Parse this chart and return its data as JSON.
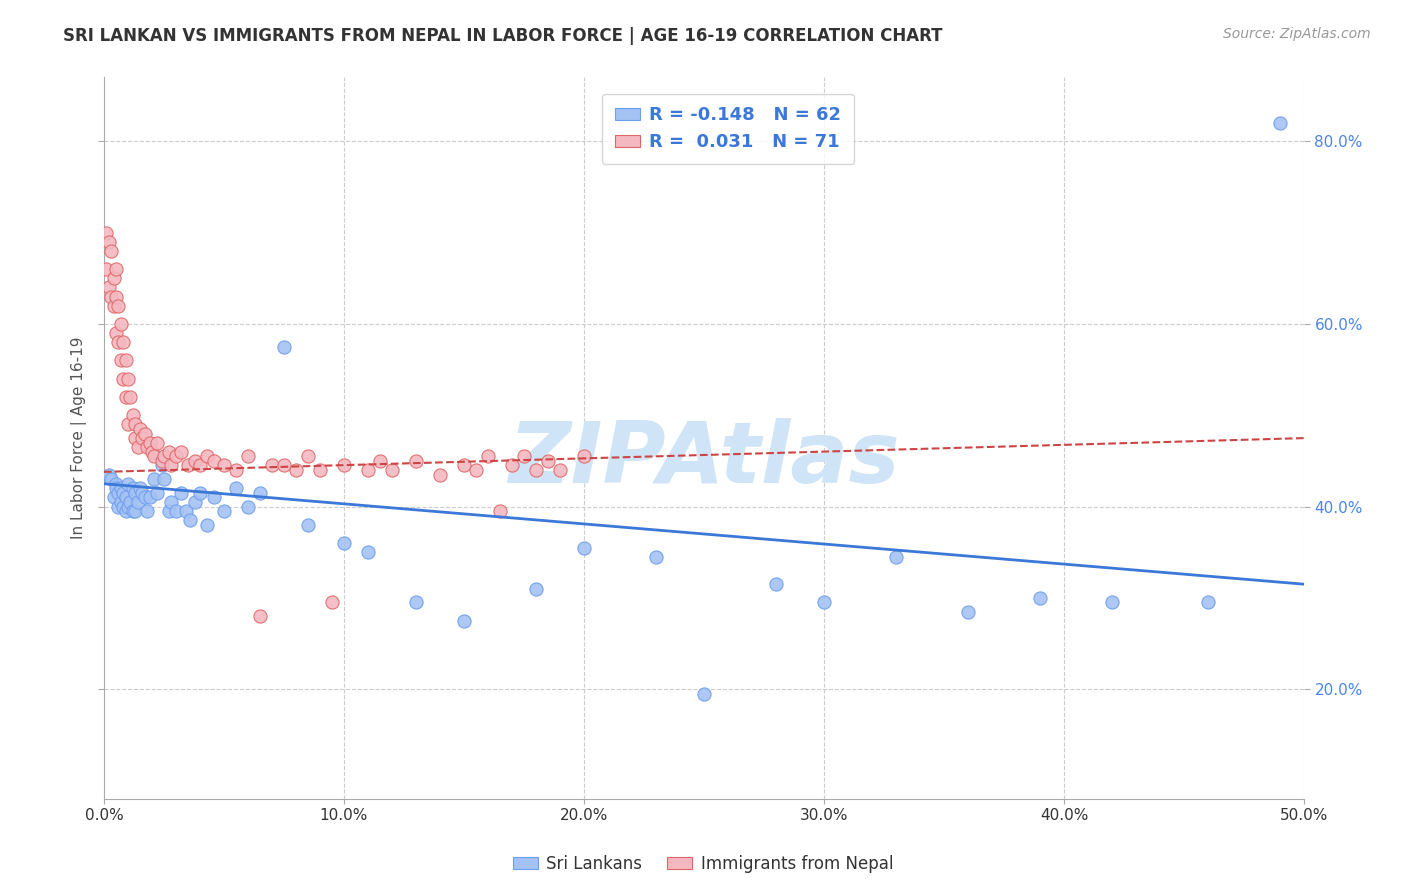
{
  "title": "SRI LANKAN VS IMMIGRANTS FROM NEPAL IN LABOR FORCE | AGE 16-19 CORRELATION CHART",
  "source": "Source: ZipAtlas.com",
  "ylabel": "In Labor Force | Age 16-19",
  "xlim": [
    0.0,
    0.5
  ],
  "ylim": [
    0.08,
    0.87
  ],
  "xticks": [
    0.0,
    0.1,
    0.2,
    0.3,
    0.4,
    0.5
  ],
  "yticks": [
    0.2,
    0.4,
    0.6,
    0.8
  ],
  "blue_R": -0.148,
  "blue_N": 62,
  "pink_R": 0.031,
  "pink_N": 71,
  "blue_color": "#a4c2f4",
  "pink_color": "#f4b8c1",
  "blue_edge_color": "#6d9eeb",
  "pink_edge_color": "#e06666",
  "blue_line_color": "#3c78d8",
  "pink_line_color": "#cc4444",
  "background_color": "#ffffff",
  "grid_color": "#cccccc",
  "watermark": "ZIPAtlas",
  "watermark_color": "#d0e4f7",
  "title_color": "#333333",
  "source_color": "#999999",
  "right_axis_color": "#4a86e8",
  "blue_line_start_y": 0.425,
  "blue_line_end_y": 0.315,
  "pink_line_start_y": 0.438,
  "pink_line_end_y": 0.475,
  "blue_scatter_x": [
    0.002,
    0.003,
    0.004,
    0.005,
    0.005,
    0.006,
    0.006,
    0.007,
    0.007,
    0.008,
    0.008,
    0.009,
    0.009,
    0.01,
    0.01,
    0.011,
    0.012,
    0.012,
    0.013,
    0.013,
    0.014,
    0.015,
    0.016,
    0.017,
    0.018,
    0.019,
    0.021,
    0.022,
    0.024,
    0.025,
    0.027,
    0.028,
    0.03,
    0.032,
    0.034,
    0.036,
    0.038,
    0.04,
    0.043,
    0.046,
    0.05,
    0.055,
    0.06,
    0.065,
    0.075,
    0.085,
    0.1,
    0.11,
    0.13,
    0.15,
    0.18,
    0.2,
    0.23,
    0.25,
    0.28,
    0.3,
    0.33,
    0.36,
    0.39,
    0.42,
    0.46,
    0.49
  ],
  "blue_scatter_y": [
    0.435,
    0.43,
    0.41,
    0.425,
    0.42,
    0.415,
    0.4,
    0.42,
    0.405,
    0.415,
    0.4,
    0.41,
    0.395,
    0.425,
    0.4,
    0.405,
    0.42,
    0.395,
    0.415,
    0.395,
    0.405,
    0.42,
    0.415,
    0.41,
    0.395,
    0.41,
    0.43,
    0.415,
    0.445,
    0.43,
    0.395,
    0.405,
    0.395,
    0.415,
    0.395,
    0.385,
    0.405,
    0.415,
    0.38,
    0.41,
    0.395,
    0.42,
    0.4,
    0.415,
    0.575,
    0.38,
    0.36,
    0.35,
    0.295,
    0.275,
    0.31,
    0.355,
    0.345,
    0.195,
    0.315,
    0.295,
    0.345,
    0.285,
    0.3,
    0.295,
    0.295,
    0.82
  ],
  "pink_scatter_x": [
    0.001,
    0.001,
    0.002,
    0.002,
    0.003,
    0.003,
    0.004,
    0.004,
    0.005,
    0.005,
    0.005,
    0.006,
    0.006,
    0.007,
    0.007,
    0.008,
    0.008,
    0.009,
    0.009,
    0.01,
    0.01,
    0.011,
    0.012,
    0.013,
    0.013,
    0.014,
    0.015,
    0.016,
    0.017,
    0.018,
    0.019,
    0.02,
    0.021,
    0.022,
    0.024,
    0.025,
    0.027,
    0.028,
    0.03,
    0.032,
    0.035,
    0.038,
    0.04,
    0.043,
    0.046,
    0.05,
    0.055,
    0.06,
    0.065,
    0.07,
    0.075,
    0.08,
    0.085,
    0.09,
    0.095,
    0.1,
    0.11,
    0.115,
    0.12,
    0.13,
    0.14,
    0.15,
    0.155,
    0.16,
    0.165,
    0.17,
    0.175,
    0.18,
    0.185,
    0.19,
    0.2
  ],
  "pink_scatter_y": [
    0.7,
    0.66,
    0.69,
    0.64,
    0.68,
    0.63,
    0.65,
    0.62,
    0.66,
    0.63,
    0.59,
    0.62,
    0.58,
    0.6,
    0.56,
    0.58,
    0.54,
    0.56,
    0.52,
    0.54,
    0.49,
    0.52,
    0.5,
    0.49,
    0.475,
    0.465,
    0.485,
    0.475,
    0.48,
    0.465,
    0.47,
    0.46,
    0.455,
    0.47,
    0.45,
    0.455,
    0.46,
    0.445,
    0.455,
    0.46,
    0.445,
    0.45,
    0.445,
    0.455,
    0.45,
    0.445,
    0.44,
    0.455,
    0.28,
    0.445,
    0.445,
    0.44,
    0.455,
    0.44,
    0.295,
    0.445,
    0.44,
    0.45,
    0.44,
    0.45,
    0.435,
    0.445,
    0.44,
    0.455,
    0.395,
    0.445,
    0.455,
    0.44,
    0.45,
    0.44,
    0.455
  ]
}
